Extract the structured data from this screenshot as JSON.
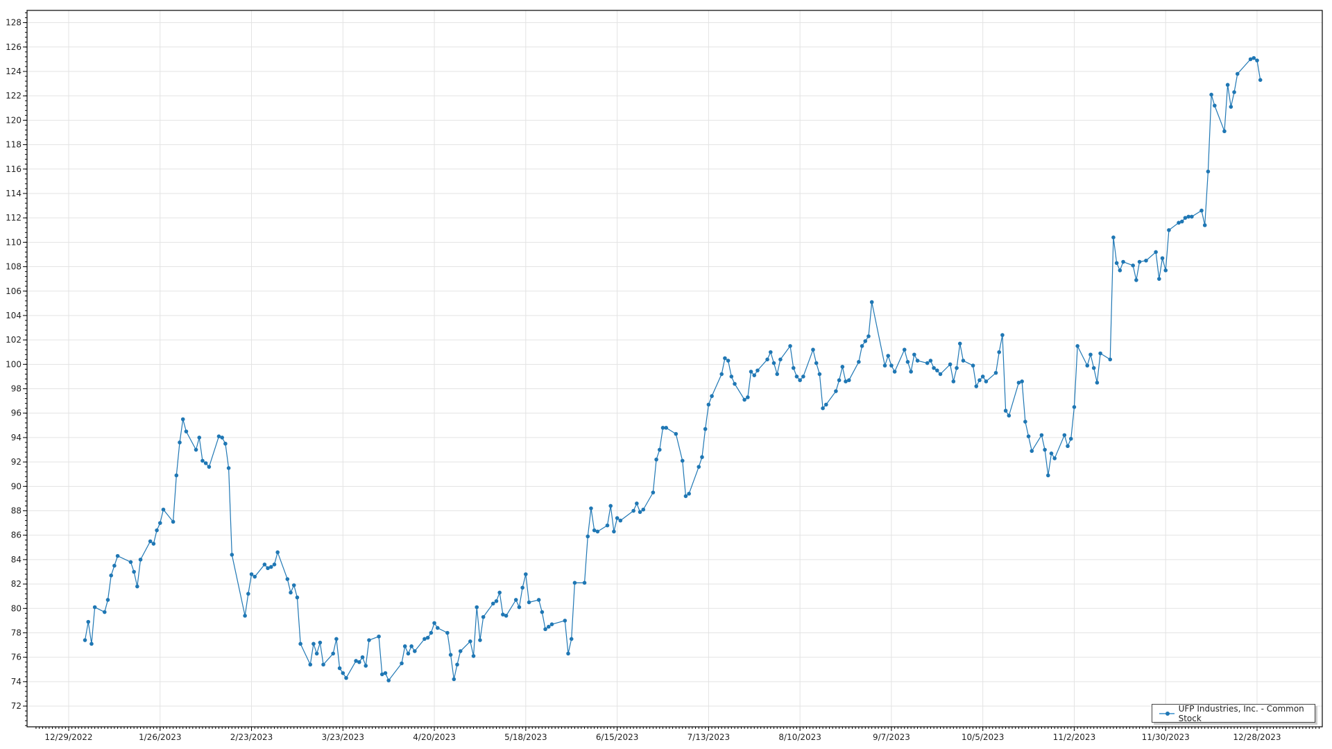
{
  "chart_data": {
    "type": "line",
    "title": "",
    "xlabel": "",
    "ylabel": "",
    "ylim": [
      70.3,
      129
    ],
    "yticks": [
      72,
      74,
      76,
      78,
      80,
      82,
      84,
      86,
      88,
      90,
      92,
      94,
      96,
      98,
      100,
      102,
      104,
      106,
      108,
      110,
      112,
      114,
      116,
      118,
      120,
      122,
      124,
      126,
      128
    ],
    "xticks": [
      "12/29/2022",
      "1/26/2023",
      "2/23/2023",
      "3/23/2023",
      "4/20/2023",
      "5/18/2023",
      "6/15/2023",
      "7/13/2023",
      "8/10/2023",
      "9/7/2023",
      "10/5/2023",
      "11/2/2023",
      "11/30/2023",
      "12/28/2023"
    ],
    "xlim": [
      "2022-12-19",
      "2024-01-06"
    ],
    "grid": true,
    "legend_position": "bottom-right",
    "series": [
      {
        "name": "UFP Industries, Inc. - Common Stock",
        "color": "#1f77b4",
        "points": [
          [
            "2023-01-03",
            77.4
          ],
          [
            "2023-01-04",
            78.9
          ],
          [
            "2023-01-05",
            77.1
          ],
          [
            "2023-01-06",
            80.1
          ],
          [
            "2023-01-09",
            79.7
          ],
          [
            "2023-01-10",
            80.7
          ],
          [
            "2023-01-11",
            82.7
          ],
          [
            "2023-01-12",
            83.5
          ],
          [
            "2023-01-13",
            84.3
          ],
          [
            "2023-01-17",
            83.8
          ],
          [
            "2023-01-18",
            83.0
          ],
          [
            "2023-01-19",
            81.8
          ],
          [
            "2023-01-20",
            84.0
          ],
          [
            "2023-01-23",
            85.5
          ],
          [
            "2023-01-24",
            85.3
          ],
          [
            "2023-01-25",
            86.4
          ],
          [
            "2023-01-26",
            87.0
          ],
          [
            "2023-01-27",
            88.1
          ],
          [
            "2023-01-30",
            87.1
          ],
          [
            "2023-01-31",
            90.9
          ],
          [
            "2023-02-01",
            93.6
          ],
          [
            "2023-02-02",
            95.5
          ],
          [
            "2023-02-03",
            94.5
          ],
          [
            "2023-02-06",
            93.0
          ],
          [
            "2023-02-07",
            94.0
          ],
          [
            "2023-02-08",
            92.1
          ],
          [
            "2023-02-09",
            91.9
          ],
          [
            "2023-02-10",
            91.6
          ],
          [
            "2023-02-13",
            94.1
          ],
          [
            "2023-02-14",
            94.0
          ],
          [
            "2023-02-15",
            93.5
          ],
          [
            "2023-02-16",
            91.5
          ],
          [
            "2023-02-17",
            84.4
          ],
          [
            "2023-02-21",
            79.4
          ],
          [
            "2023-02-22",
            81.2
          ],
          [
            "2023-02-23",
            82.8
          ],
          [
            "2023-02-24",
            82.6
          ],
          [
            "2023-02-27",
            83.6
          ],
          [
            "2023-02-28",
            83.3
          ],
          [
            "2023-03-01",
            83.4
          ],
          [
            "2023-03-02",
            83.6
          ],
          [
            "2023-03-03",
            84.6
          ],
          [
            "2023-03-06",
            82.4
          ],
          [
            "2023-03-07",
            81.3
          ],
          [
            "2023-03-08",
            81.9
          ],
          [
            "2023-03-09",
            80.9
          ],
          [
            "2023-03-10",
            77.1
          ],
          [
            "2023-03-13",
            75.4
          ],
          [
            "2023-03-14",
            77.1
          ],
          [
            "2023-03-15",
            76.3
          ],
          [
            "2023-03-16",
            77.2
          ],
          [
            "2023-03-17",
            75.4
          ],
          [
            "2023-03-20",
            76.3
          ],
          [
            "2023-03-21",
            77.5
          ],
          [
            "2023-03-22",
            75.1
          ],
          [
            "2023-03-23",
            74.7
          ],
          [
            "2023-03-24",
            74.3
          ],
          [
            "2023-03-27",
            75.7
          ],
          [
            "2023-03-28",
            75.6
          ],
          [
            "2023-03-29",
            76.0
          ],
          [
            "2023-03-30",
            75.3
          ],
          [
            "2023-03-31",
            77.4
          ],
          [
            "2023-04-03",
            77.7
          ],
          [
            "2023-04-04",
            74.6
          ],
          [
            "2023-04-05",
            74.7
          ],
          [
            "2023-04-06",
            74.1
          ],
          [
            "2023-04-10",
            75.5
          ],
          [
            "2023-04-11",
            76.9
          ],
          [
            "2023-04-12",
            76.3
          ],
          [
            "2023-04-13",
            76.9
          ],
          [
            "2023-04-14",
            76.5
          ],
          [
            "2023-04-17",
            77.5
          ],
          [
            "2023-04-18",
            77.6
          ],
          [
            "2023-04-19",
            78.0
          ],
          [
            "2023-04-20",
            78.8
          ],
          [
            "2023-04-21",
            78.4
          ],
          [
            "2023-04-24",
            78.0
          ],
          [
            "2023-04-25",
            76.2
          ],
          [
            "2023-04-26",
            74.2
          ],
          [
            "2023-04-27",
            75.4
          ],
          [
            "2023-04-28",
            76.5
          ],
          [
            "2023-05-01",
            77.3
          ],
          [
            "2023-05-02",
            76.1
          ],
          [
            "2023-05-03",
            80.1
          ],
          [
            "2023-05-04",
            77.4
          ],
          [
            "2023-05-05",
            79.3
          ],
          [
            "2023-05-08",
            80.4
          ],
          [
            "2023-05-09",
            80.6
          ],
          [
            "2023-05-10",
            81.3
          ],
          [
            "2023-05-11",
            79.5
          ],
          [
            "2023-05-12",
            79.4
          ],
          [
            "2023-05-15",
            80.7
          ],
          [
            "2023-05-16",
            80.1
          ],
          [
            "2023-05-17",
            81.7
          ],
          [
            "2023-05-18",
            82.8
          ],
          [
            "2023-05-19",
            80.5
          ],
          [
            "2023-05-22",
            80.7
          ],
          [
            "2023-05-23",
            79.7
          ],
          [
            "2023-05-24",
            78.3
          ],
          [
            "2023-05-25",
            78.5
          ],
          [
            "2023-05-26",
            78.7
          ],
          [
            "2023-05-30",
            79.0
          ],
          [
            "2023-05-31",
            76.3
          ],
          [
            "2023-06-01",
            77.5
          ],
          [
            "2023-06-02",
            82.1
          ],
          [
            "2023-06-05",
            82.1
          ],
          [
            "2023-06-06",
            85.9
          ],
          [
            "2023-06-07",
            88.2
          ],
          [
            "2023-06-08",
            86.4
          ],
          [
            "2023-06-09",
            86.3
          ],
          [
            "2023-06-12",
            86.8
          ],
          [
            "2023-06-13",
            88.4
          ],
          [
            "2023-06-14",
            86.3
          ],
          [
            "2023-06-15",
            87.4
          ],
          [
            "2023-06-16",
            87.2
          ],
          [
            "2023-06-20",
            88.0
          ],
          [
            "2023-06-21",
            88.6
          ],
          [
            "2023-06-22",
            87.9
          ],
          [
            "2023-06-23",
            88.1
          ],
          [
            "2023-06-26",
            89.5
          ],
          [
            "2023-06-27",
            92.2
          ],
          [
            "2023-06-28",
            93.0
          ],
          [
            "2023-06-29",
            94.8
          ],
          [
            "2023-06-30",
            94.8
          ],
          [
            "2023-07-03",
            94.3
          ],
          [
            "2023-07-05",
            92.1
          ],
          [
            "2023-07-06",
            89.2
          ],
          [
            "2023-07-07",
            89.4
          ],
          [
            "2023-07-10",
            91.6
          ],
          [
            "2023-07-11",
            92.4
          ],
          [
            "2023-07-12",
            94.7
          ],
          [
            "2023-07-13",
            96.7
          ],
          [
            "2023-07-14",
            97.4
          ],
          [
            "2023-07-17",
            99.2
          ],
          [
            "2023-07-18",
            100.5
          ],
          [
            "2023-07-19",
            100.3
          ],
          [
            "2023-07-20",
            99.0
          ],
          [
            "2023-07-21",
            98.4
          ],
          [
            "2023-07-24",
            97.1
          ],
          [
            "2023-07-25",
            97.3
          ],
          [
            "2023-07-26",
            99.4
          ],
          [
            "2023-07-27",
            99.1
          ],
          [
            "2023-07-28",
            99.5
          ],
          [
            "2023-07-31",
            100.4
          ],
          [
            "2023-08-01",
            101.0
          ],
          [
            "2023-08-02",
            100.1
          ],
          [
            "2023-08-03",
            99.2
          ],
          [
            "2023-08-04",
            100.4
          ],
          [
            "2023-08-07",
            101.5
          ],
          [
            "2023-08-08",
            99.7
          ],
          [
            "2023-08-09",
            99.0
          ],
          [
            "2023-08-10",
            98.7
          ],
          [
            "2023-08-11",
            99.0
          ],
          [
            "2023-08-14",
            101.2
          ],
          [
            "2023-08-15",
            100.1
          ],
          [
            "2023-08-16",
            99.2
          ],
          [
            "2023-08-17",
            96.4
          ],
          [
            "2023-08-18",
            96.7
          ],
          [
            "2023-08-21",
            97.8
          ],
          [
            "2023-08-22",
            98.7
          ],
          [
            "2023-08-23",
            99.8
          ],
          [
            "2023-08-24",
            98.6
          ],
          [
            "2023-08-25",
            98.7
          ],
          [
            "2023-08-28",
            100.2
          ],
          [
            "2023-08-29",
            101.5
          ],
          [
            "2023-08-30",
            101.9
          ],
          [
            "2023-08-31",
            102.3
          ],
          [
            "2023-09-01",
            105.1
          ],
          [
            "2023-09-05",
            99.9
          ],
          [
            "2023-09-06",
            100.7
          ],
          [
            "2023-09-07",
            99.9
          ],
          [
            "2023-09-08",
            99.4
          ],
          [
            "2023-09-11",
            101.2
          ],
          [
            "2023-09-12",
            100.2
          ],
          [
            "2023-09-13",
            99.4
          ],
          [
            "2023-09-14",
            100.8
          ],
          [
            "2023-09-15",
            100.3
          ],
          [
            "2023-09-18",
            100.1
          ],
          [
            "2023-09-19",
            100.3
          ],
          [
            "2023-09-20",
            99.7
          ],
          [
            "2023-09-21",
            99.5
          ],
          [
            "2023-09-22",
            99.2
          ],
          [
            "2023-09-25",
            100.0
          ],
          [
            "2023-09-26",
            98.6
          ],
          [
            "2023-09-27",
            99.7
          ],
          [
            "2023-09-28",
            101.7
          ],
          [
            "2023-09-29",
            100.3
          ],
          [
            "2023-10-02",
            99.9
          ],
          [
            "2023-10-03",
            98.2
          ],
          [
            "2023-10-04",
            98.7
          ],
          [
            "2023-10-05",
            99.0
          ],
          [
            "2023-10-06",
            98.6
          ],
          [
            "2023-10-09",
            99.3
          ],
          [
            "2023-10-10",
            101.0
          ],
          [
            "2023-10-11",
            102.4
          ],
          [
            "2023-10-12",
            96.2
          ],
          [
            "2023-10-13",
            95.8
          ],
          [
            "2023-10-16",
            98.5
          ],
          [
            "2023-10-17",
            98.6
          ],
          [
            "2023-10-18",
            95.3
          ],
          [
            "2023-10-19",
            94.1
          ],
          [
            "2023-10-20",
            92.9
          ],
          [
            "2023-10-23",
            94.2
          ],
          [
            "2023-10-24",
            93.0
          ],
          [
            "2023-10-25",
            90.9
          ],
          [
            "2023-10-26",
            92.7
          ],
          [
            "2023-10-27",
            92.3
          ],
          [
            "2023-10-30",
            94.2
          ],
          [
            "2023-10-31",
            93.3
          ],
          [
            "2023-11-01",
            93.9
          ],
          [
            "2023-11-02",
            96.5
          ],
          [
            "2023-11-03",
            101.5
          ],
          [
            "2023-11-06",
            99.9
          ],
          [
            "2023-11-07",
            100.8
          ],
          [
            "2023-11-08",
            99.7
          ],
          [
            "2023-11-09",
            98.5
          ],
          [
            "2023-11-10",
            100.9
          ],
          [
            "2023-11-13",
            100.4
          ],
          [
            "2023-11-14",
            110.4
          ],
          [
            "2023-11-15",
            108.3
          ],
          [
            "2023-11-16",
            107.7
          ],
          [
            "2023-11-17",
            108.4
          ],
          [
            "2023-11-20",
            108.1
          ],
          [
            "2023-11-21",
            106.9
          ],
          [
            "2023-11-22",
            108.4
          ],
          [
            "2023-11-24",
            108.5
          ],
          [
            "2023-11-27",
            109.2
          ],
          [
            "2023-11-28",
            107.0
          ],
          [
            "2023-11-29",
            108.7
          ],
          [
            "2023-11-30",
            107.7
          ],
          [
            "2023-12-01",
            111.0
          ],
          [
            "2023-12-04",
            111.6
          ],
          [
            "2023-12-05",
            111.7
          ],
          [
            "2023-12-06",
            112.0
          ],
          [
            "2023-12-07",
            112.1
          ],
          [
            "2023-12-08",
            112.1
          ],
          [
            "2023-12-11",
            112.6
          ],
          [
            "2023-12-12",
            111.4
          ],
          [
            "2023-12-13",
            115.8
          ],
          [
            "2023-12-14",
            122.1
          ],
          [
            "2023-12-15",
            121.2
          ],
          [
            "2023-12-18",
            119.1
          ],
          [
            "2023-12-19",
            122.9
          ],
          [
            "2023-12-20",
            121.1
          ],
          [
            "2023-12-21",
            122.3
          ],
          [
            "2023-12-22",
            123.8
          ],
          [
            "2023-12-26",
            125.0
          ],
          [
            "2023-12-27",
            125.1
          ],
          [
            "2023-12-28",
            124.9
          ],
          [
            "2023-12-29",
            123.3
          ]
        ]
      }
    ]
  }
}
